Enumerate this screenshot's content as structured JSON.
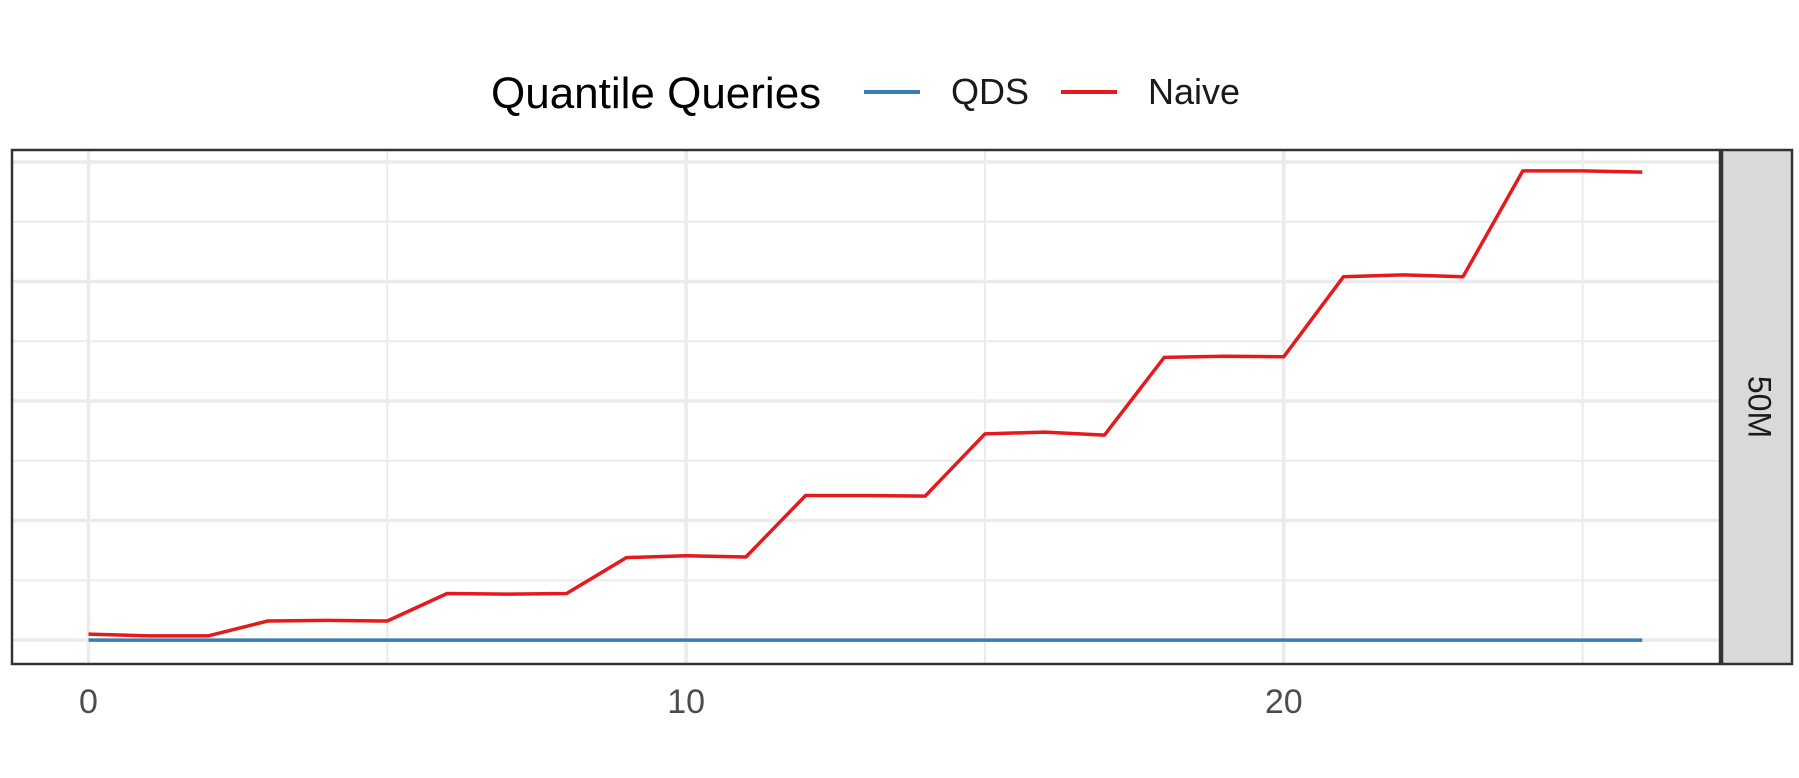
{
  "chart_data": {
    "type": "line",
    "legend_title": "Quantile Queries",
    "legend_position": "top",
    "facet_label": "50M",
    "x": [
      0,
      1,
      2,
      3,
      4,
      5,
      6,
      7,
      8,
      9,
      10,
      11,
      12,
      13,
      14,
      15,
      16,
      17,
      18,
      19,
      20,
      21,
      22,
      23,
      24,
      25,
      26
    ],
    "x_ticks": [
      0,
      10,
      20
    ],
    "xlim": [
      -1.28,
      27.3
    ],
    "ylim": [
      -0.4,
      8.2
    ],
    "grid": true,
    "series": [
      {
        "name": "QDS",
        "color": "#377eb8",
        "values": [
          0,
          0,
          0,
          0,
          0,
          0,
          0,
          0,
          0,
          0,
          0,
          0,
          0,
          0,
          0,
          0,
          0,
          0,
          0,
          0,
          0,
          0,
          0,
          0,
          0,
          0,
          0
        ]
      },
      {
        "name": "Naive",
        "color": "#e41a1c",
        "values": [
          0.1,
          0.07,
          0.07,
          0.32,
          0.33,
          0.32,
          0.78,
          0.77,
          0.78,
          1.38,
          1.41,
          1.39,
          2.42,
          2.42,
          2.41,
          3.45,
          3.48,
          3.43,
          4.73,
          4.75,
          4.74,
          6.08,
          6.11,
          6.08,
          7.85,
          7.85,
          7.83
        ]
      }
    ]
  }
}
